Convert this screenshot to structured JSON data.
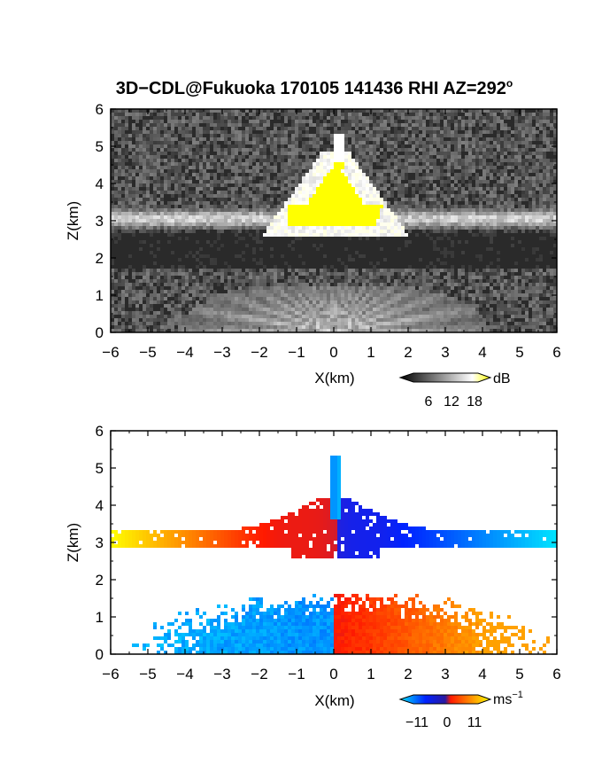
{
  "title": "3D−CDL@Fukuoka 170105 141436 RHI AZ=292",
  "title_superscript": "o",
  "chart_data": [
    {
      "type": "heatmap",
      "name": "snr-panel",
      "xlabel": "X(km)",
      "ylabel": "Z(km)",
      "xlim": [
        -6,
        6
      ],
      "ylim": [
        0,
        6
      ],
      "x_ticks": [
        "−6",
        "−5",
        "−4",
        "−3",
        "−2",
        "−1",
        "0",
        "1",
        "2",
        "3",
        "4",
        "5",
        "6"
      ],
      "y_ticks": [
        "0",
        "1",
        "2",
        "3",
        "4",
        "5",
        "6"
      ],
      "colorbar": {
        "unit": "dB",
        "ticks": [
          "6",
          "12",
          "18"
        ],
        "range": [
          0,
          20
        ],
        "colors": [
          "#000000",
          "#ffffff",
          "#ffff00"
        ]
      },
      "features": [
        {
          "label": "cloud layer",
          "x_range": [
            -6,
            6
          ],
          "z_center": 3.05,
          "z_halfwidth": 0.2,
          "db": 12
        },
        {
          "label": "saturated core",
          "x_range": [
            -1.2,
            1.35
          ],
          "z_range": [
            2.9,
            4.4
          ],
          "db": 20
        },
        {
          "label": "spike",
          "x": 0.1,
          "z_range": [
            4.4,
            5.3
          ],
          "db": 16
        },
        {
          "label": "near-ground fan",
          "x_range": [
            -4,
            4
          ],
          "z_range": [
            0,
            1.2
          ],
          "db": 10
        }
      ]
    },
    {
      "type": "heatmap",
      "name": "velocity-panel",
      "xlabel": "X(km)",
      "ylabel": "Z(km)",
      "xlim": [
        -6,
        6
      ],
      "ylim": [
        0,
        6
      ],
      "x_ticks": [
        "−6",
        "−5",
        "−4",
        "−3",
        "−2",
        "−1",
        "0",
        "1",
        "2",
        "3",
        "4",
        "5",
        "6"
      ],
      "y_ticks": [
        "0",
        "1",
        "2",
        "3",
        "4",
        "5",
        "6"
      ],
      "colorbar": {
        "unit": "ms",
        "unit_superscript": "−1",
        "ticks": [
          "−11",
          "0",
          "11"
        ],
        "range": [
          -11,
          11
        ],
        "colors": [
          "#00e5ff",
          "#0022ff",
          "#ff1a00",
          "#ffff00"
        ]
      },
      "features": [
        {
          "label": "upper layer",
          "x_range": [
            -6,
            6
          ],
          "z_center": 3.1,
          "velocity_at_left": 11,
          "velocity_at_right": -11
        },
        {
          "label": "lower fan",
          "x_range": [
            -5.5,
            5.8
          ],
          "z_range": [
            0,
            1.65
          ],
          "velocity_left": -9,
          "velocity_right": 8
        }
      ]
    }
  ]
}
